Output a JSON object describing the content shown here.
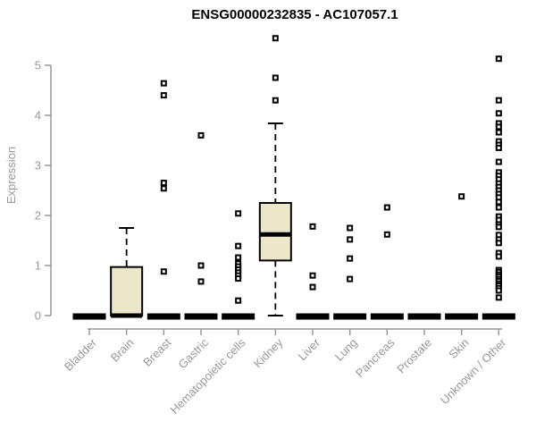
{
  "chart_data": {
    "type": "boxplot",
    "title": "ENSG00000232835 - AC107057.1",
    "xlabel": "",
    "ylabel": "Expression",
    "ylim": [
      0,
      5
    ],
    "yticks": [
      0,
      1,
      2,
      3,
      4,
      5
    ],
    "grid": false,
    "legend": "none",
    "categories": [
      "Bladder",
      "Brain",
      "Breast",
      "Gastric",
      "Hematopoietic cells",
      "Kidney",
      "Liver",
      "Lung",
      "Pancreas",
      "Prostate",
      "Skin",
      "Unknown / Other"
    ],
    "boxes": [
      {
        "category": "Bladder",
        "q1": 0,
        "median": 0,
        "q3": 0,
        "whisker_low": 0,
        "whisker_high": 0
      },
      {
        "category": "Brain",
        "q1": 0,
        "median": 0,
        "q3": 0.97,
        "whisker_low": 0,
        "whisker_high": 1.75
      },
      {
        "category": "Breast",
        "q1": 0,
        "median": 0,
        "q3": 0,
        "whisker_low": 0,
        "whisker_high": 0
      },
      {
        "category": "Gastric",
        "q1": 0,
        "median": 0,
        "q3": 0,
        "whisker_low": 0,
        "whisker_high": 0
      },
      {
        "category": "Hematopoietic cells",
        "q1": 0,
        "median": 0,
        "q3": 0,
        "whisker_low": 0,
        "whisker_high": 0
      },
      {
        "category": "Kidney",
        "q1": 1.1,
        "median": 1.62,
        "q3": 2.25,
        "whisker_low": 0,
        "whisker_high": 3.84
      },
      {
        "category": "Liver",
        "q1": 0,
        "median": 0,
        "q3": 0,
        "whisker_low": 0,
        "whisker_high": 0
      },
      {
        "category": "Lung",
        "q1": 0,
        "median": 0,
        "q3": 0,
        "whisker_low": 0,
        "whisker_high": 0
      },
      {
        "category": "Pancreas",
        "q1": 0,
        "median": 0,
        "q3": 0,
        "whisker_low": 0,
        "whisker_high": 0
      },
      {
        "category": "Prostate",
        "q1": 0,
        "median": 0,
        "q3": 0,
        "whisker_low": 0,
        "whisker_high": 0
      },
      {
        "category": "Skin",
        "q1": 0,
        "median": 0,
        "q3": 0,
        "whisker_low": 0,
        "whisker_high": 0
      },
      {
        "category": "Unknown / Other",
        "q1": 0,
        "median": 0,
        "q3": 0,
        "whisker_low": 0,
        "whisker_high": 0
      }
    ],
    "outliers": [
      [],
      [],
      [
        4.64,
        4.4,
        2.65,
        2.54,
        0.88
      ],
      [
        3.6,
        1.0,
        0.68
      ],
      [
        2.04,
        1.39,
        1.16,
        1.04,
        0.98,
        0.92,
        0.86,
        0.8,
        0.74,
        0.3
      ],
      [
        5.54,
        4.75,
        4.3
      ],
      [
        1.78,
        0.8,
        0.57
      ],
      [
        1.75,
        1.52,
        1.14,
        0.73
      ],
      [
        2.16,
        1.62
      ],
      [],
      [
        2.38
      ],
      [
        5.13,
        4.3,
        4.04,
        3.84,
        3.77,
        3.66,
        3.48,
        3.41,
        3.35,
        3.07,
        2.86,
        2.79,
        2.72,
        2.64,
        2.57,
        2.5,
        2.43,
        2.36,
        2.27,
        2.16,
        1.98,
        1.91,
        1.82,
        1.77,
        1.61,
        1.52,
        1.45,
        1.25,
        1.18,
        0.91,
        0.87,
        0.82,
        0.78,
        0.73,
        0.69,
        0.64,
        0.6,
        0.55,
        0.5,
        0.36
      ]
    ],
    "colors": {
      "box_fill": "#ece7cb",
      "box_stroke": "#000000",
      "median": "#000000",
      "outlier_stroke": "#000000",
      "outlier_fill": "#ffffff",
      "axis": "#999999",
      "tick_label": "#999999",
      "title": "#000000"
    }
  }
}
